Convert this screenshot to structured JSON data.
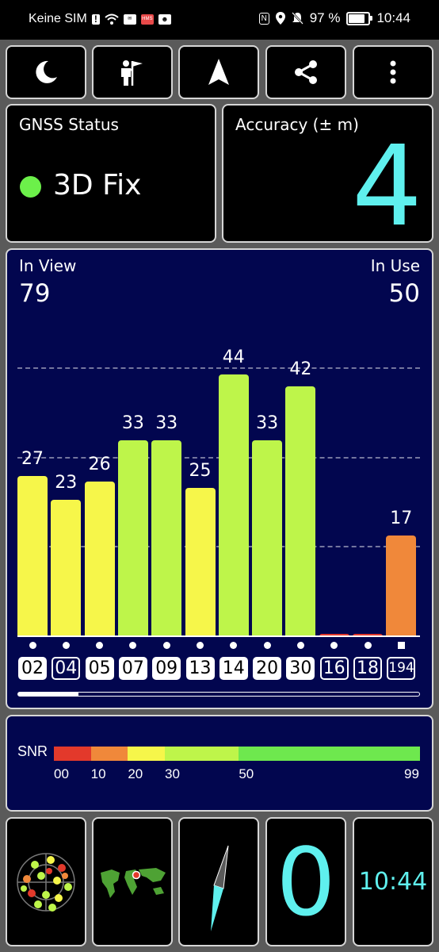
{
  "status_bar": {
    "carrier": "Keine SIM",
    "battery_percent": "97 %",
    "battery_level": 0.97,
    "time": "10:44",
    "icons": [
      "sim-alert-icon",
      "wifi-icon",
      "huawei-app-icon",
      "hms-icon",
      "app-notification-icon",
      "nfc-icon",
      "location-icon",
      "bell-muted-icon",
      "battery-icon"
    ]
  },
  "toolbar": {
    "buttons": [
      "night-mode-icon",
      "explorer-icon",
      "navigation-arrow-icon",
      "share-icon",
      "more-options-icon"
    ]
  },
  "gnss_status": {
    "title": "GNSS Status",
    "value": "3D Fix",
    "indicator_color": "#6cf04a"
  },
  "accuracy": {
    "title": "Accuracy (± m)",
    "value": "4",
    "color": "#5ff0ee"
  },
  "satellites": {
    "in_view_label": "In View",
    "in_view": "79",
    "in_use_label": "In Use",
    "in_use": "50",
    "snr_max": 60,
    "bars": [
      {
        "prn": "02",
        "snr": 27,
        "label": "27",
        "color": "#f6f64a",
        "used": true,
        "marker": "dot"
      },
      {
        "prn": "04",
        "snr": 23,
        "label": "23",
        "color": "#f6f64a",
        "used": false,
        "marker": "dot"
      },
      {
        "prn": "05",
        "snr": 26,
        "label": "26",
        "color": "#f6f64a",
        "used": true,
        "marker": "dot"
      },
      {
        "prn": "07",
        "snr": 33,
        "label": "33",
        "color": "#bef54a",
        "used": true,
        "marker": "dot"
      },
      {
        "prn": "09",
        "snr": 33,
        "label": "33",
        "color": "#bef54a",
        "used": true,
        "marker": "dot"
      },
      {
        "prn": "13",
        "snr": 25,
        "label": "25",
        "color": "#f6f64a",
        "used": true,
        "marker": "dot"
      },
      {
        "prn": "14",
        "snr": 44,
        "label": "44",
        "color": "#bef54a",
        "used": true,
        "marker": "dot"
      },
      {
        "prn": "20",
        "snr": 33,
        "label": "33",
        "color": "#bef54a",
        "used": true,
        "marker": "dot"
      },
      {
        "prn": "30",
        "snr": 42,
        "label": "42",
        "color": "#bef54a",
        "used": true,
        "marker": "dot"
      },
      {
        "prn": "16",
        "snr": 0,
        "label": "",
        "color": "#e3392b",
        "used": false,
        "marker": "dot"
      },
      {
        "prn": "18",
        "snr": 0,
        "label": "",
        "color": "#e3392b",
        "used": false,
        "marker": "dot"
      },
      {
        "prn": "194",
        "snr": 17,
        "label": "17",
        "color": "#f0883a",
        "used": false,
        "marker": "square"
      }
    ],
    "scroll_position": 0.15
  },
  "snr_legend": {
    "label": "SNR",
    "segments": [
      {
        "from": 0,
        "to": 10,
        "color": "#e3392b"
      },
      {
        "from": 10,
        "to": 20,
        "color": "#f0883a"
      },
      {
        "from": 20,
        "to": 30,
        "color": "#f6f64a"
      },
      {
        "from": 30,
        "to": 50,
        "color": "#bef54a"
      },
      {
        "from": 50,
        "to": 99,
        "color": "#6ee84e"
      }
    ],
    "ticks": [
      "00",
      "10",
      "20",
      "30",
      "50",
      "99"
    ]
  },
  "bottom_widgets": {
    "items": [
      "sky-radar-icon",
      "world-map-icon",
      "compass-needle-icon"
    ],
    "speed": "0",
    "clock": "10:44",
    "accent_color": "#5ff0ee"
  }
}
